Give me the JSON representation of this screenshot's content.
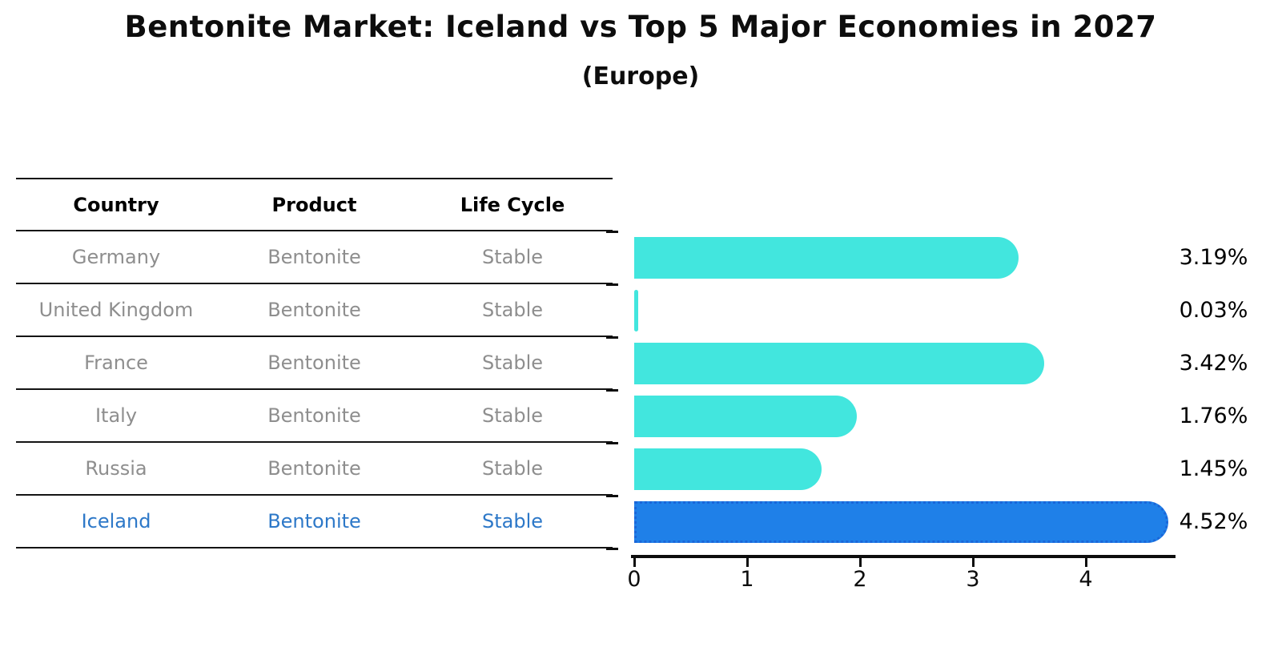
{
  "title": "Bentonite Market: Iceland vs Top 5 Major Economies in 2027",
  "subtitle": "(Europe)",
  "table": {
    "headers": [
      "Country",
      "Product",
      "Life Cycle"
    ],
    "rows": [
      {
        "country": "Germany",
        "product": "Bentonite",
        "life_cycle": "Stable",
        "value_label": "3.19%",
        "highlight": false
      },
      {
        "country": "United Kingdom",
        "product": "Bentonite",
        "life_cycle": "Stable",
        "value_label": "0.03%",
        "highlight": false
      },
      {
        "country": "France",
        "product": "Bentonite",
        "life_cycle": "Stable",
        "value_label": "3.42%",
        "highlight": false
      },
      {
        "country": "Italy",
        "product": "Bentonite",
        "life_cycle": "Stable",
        "value_label": "1.76%",
        "highlight": false
      },
      {
        "country": "Russia",
        "product": "Bentonite",
        "life_cycle": "Stable",
        "value_label": "1.45%",
        "highlight": false
      },
      {
        "country": "Iceland",
        "product": "Bentonite",
        "life_cycle": "Stable",
        "value_label": "4.52%",
        "highlight": true
      }
    ]
  },
  "chart_data": {
    "type": "bar",
    "orientation": "horizontal",
    "title": "Bentonite Market: Iceland vs Top 5 Major Economies in 2027",
    "subtitle": "(Europe)",
    "categories": [
      "Germany",
      "United Kingdom",
      "France",
      "Italy",
      "Russia",
      "Iceland"
    ],
    "values": [
      3.19,
      0.03,
      3.42,
      1.76,
      1.45,
      4.52
    ],
    "data_labels": [
      "3.19%",
      "0.03%",
      "3.42%",
      "1.76%",
      "1.45%",
      "4.52%"
    ],
    "xlabel": "",
    "ylabel": "",
    "xlim": [
      0,
      4.79
    ],
    "xticks": [
      "0",
      "1",
      "2",
      "3",
      "4"
    ],
    "grid": false,
    "legend": false,
    "highlight_index": 5,
    "colors": {
      "bar_default": "#42e6de",
      "bar_highlight": "#1f80e8",
      "bar_highlight_border": "#1a66d9",
      "value_label_text": "#000000",
      "table_row_text": "#8e8e8e",
      "table_highlight_text": "#2d78c8",
      "title_text": "#0d0d0d"
    }
  }
}
